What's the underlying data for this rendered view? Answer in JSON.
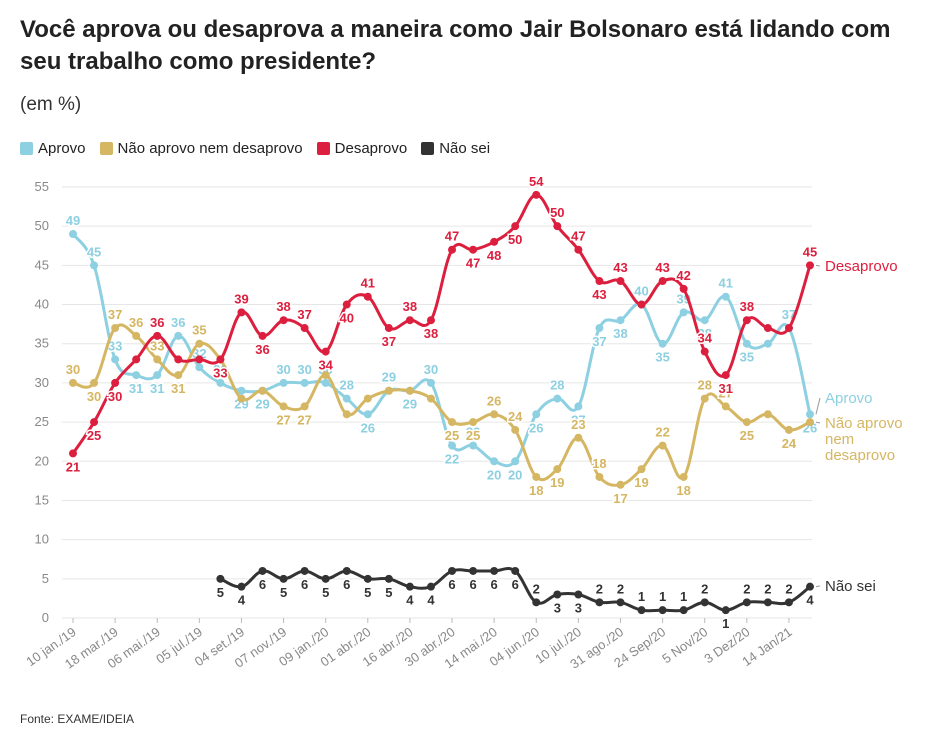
{
  "title": "Você aprova ou desaprova a maneira como Jair Bolsonaro está lidando com seu trabalho como presidente?",
  "subtitle": "(em %)",
  "source": "Fonte: EXAME/IDEIA",
  "colors": {
    "aprovo": "#8dd0e2",
    "neutro": "#d5b662",
    "desaprovo": "#dc1f3e",
    "nao_sei": "#333333",
    "grid": "#e6e6e6",
    "axis_text": "#888888"
  },
  "legend": [
    {
      "label": "Aprovo",
      "color": "#8dd0e2"
    },
    {
      "label": "Não aprovo nem desaprovo",
      "color": "#d5b662"
    },
    {
      "label": "Desaprovo",
      "color": "#dc1f3e"
    },
    {
      "label": "Não sei",
      "color": "#333333"
    }
  ],
  "chart_data": {
    "type": "line",
    "ylim": [
      0,
      55
    ],
    "yticks": [
      0,
      5,
      10,
      15,
      20,
      25,
      30,
      35,
      40,
      45,
      50,
      55
    ],
    "grid": true,
    "legend_position": "top-left",
    "x_tick_labels": [
      "10 jan./19",
      "18 mar./19",
      "06 mai./19",
      "05 jul./19",
      "04 set./19",
      "07 nov./19",
      "09 jan./20",
      "01 abr./20",
      "16 abr./20",
      "30 abr./20",
      "14 mai./20",
      "04 jun./20",
      "10 jul./20",
      "31 ago./20",
      "24 Sep/20",
      "5 Nov/20",
      "3 Dez/20",
      "14 Jan/21"
    ],
    "x_tick_indices": [
      0,
      2,
      4,
      6,
      8,
      10,
      12,
      14,
      16,
      18,
      20,
      22,
      24,
      26,
      28,
      30,
      32,
      34
    ],
    "n_points": 36,
    "series": [
      {
        "name": "Aprovo",
        "key": "aprovo",
        "end_label": "Aprovo",
        "values": [
          49,
          45,
          33,
          31,
          31,
          36,
          32,
          30,
          29,
          29,
          30,
          30,
          30,
          28,
          26,
          29,
          29,
          30,
          22,
          22,
          20,
          20,
          26,
          28,
          27,
          37,
          38,
          40,
          35,
          39,
          38,
          41,
          35,
          35,
          37,
          26
        ],
        "data_labels": [
          49,
          45,
          33,
          31,
          31,
          36,
          32,
          30,
          29,
          29,
          30,
          30,
          30,
          28,
          26,
          29,
          29,
          30,
          22,
          22,
          20,
          20,
          26,
          28,
          27,
          37,
          38,
          40,
          35,
          39,
          38,
          41,
          35,
          null,
          37,
          26
        ]
      },
      {
        "name": "Não aprovo nem desaprovo",
        "key": "neutro",
        "end_label": "Não aprovo nem desaprovo",
        "values": [
          30,
          30,
          37,
          36,
          33,
          31,
          35,
          33,
          28,
          29,
          27,
          27,
          31,
          26,
          28,
          29,
          29,
          28,
          25,
          25,
          26,
          24,
          18,
          19,
          23,
          18,
          17,
          19,
          22,
          18,
          28,
          27,
          25,
          26,
          24,
          25
        ],
        "data_labels": [
          30,
          30,
          37,
          36,
          33,
          31,
          35,
          null,
          null,
          null,
          27,
          27,
          null,
          null,
          null,
          null,
          null,
          null,
          25,
          25,
          26,
          24,
          18,
          19,
          23,
          18,
          17,
          19,
          22,
          18,
          28,
          27,
          25,
          null,
          24,
          null
        ]
      },
      {
        "name": "Desaprovo",
        "key": "desaprovo",
        "end_label": "Desaprovo",
        "values": [
          21,
          25,
          30,
          33,
          36,
          33,
          33,
          33,
          39,
          36,
          38,
          37,
          34,
          40,
          41,
          37,
          38,
          38,
          47,
          47,
          48,
          50,
          54,
          50,
          47,
          43,
          43,
          40,
          43,
          42,
          34,
          31,
          38,
          37,
          37,
          45
        ],
        "data_labels": [
          21,
          25,
          30,
          null,
          36,
          null,
          null,
          33,
          39,
          36,
          38,
          37,
          34,
          40,
          41,
          37,
          38,
          38,
          47,
          47,
          48,
          50,
          54,
          50,
          47,
          43,
          43,
          null,
          43,
          42,
          34,
          31,
          38,
          null,
          null,
          45
        ]
      },
      {
        "name": "Não sei",
        "key": "nao_sei",
        "end_label": "Não sei",
        "start_index": 7,
        "values": [
          null,
          null,
          null,
          null,
          null,
          null,
          null,
          5,
          4,
          6,
          5,
          6,
          5,
          6,
          5,
          5,
          4,
          4,
          6,
          6,
          6,
          6,
          2,
          3,
          3,
          2,
          2,
          1,
          1,
          1,
          2,
          1,
          2,
          2,
          2,
          4
        ],
        "data_labels": [
          null,
          null,
          null,
          null,
          null,
          null,
          null,
          5,
          4,
          6,
          5,
          6,
          5,
          6,
          5,
          5,
          4,
          4,
          6,
          6,
          6,
          6,
          2,
          3,
          3,
          2,
          2,
          1,
          1,
          1,
          2,
          1,
          2,
          2,
          2,
          4
        ]
      }
    ]
  }
}
